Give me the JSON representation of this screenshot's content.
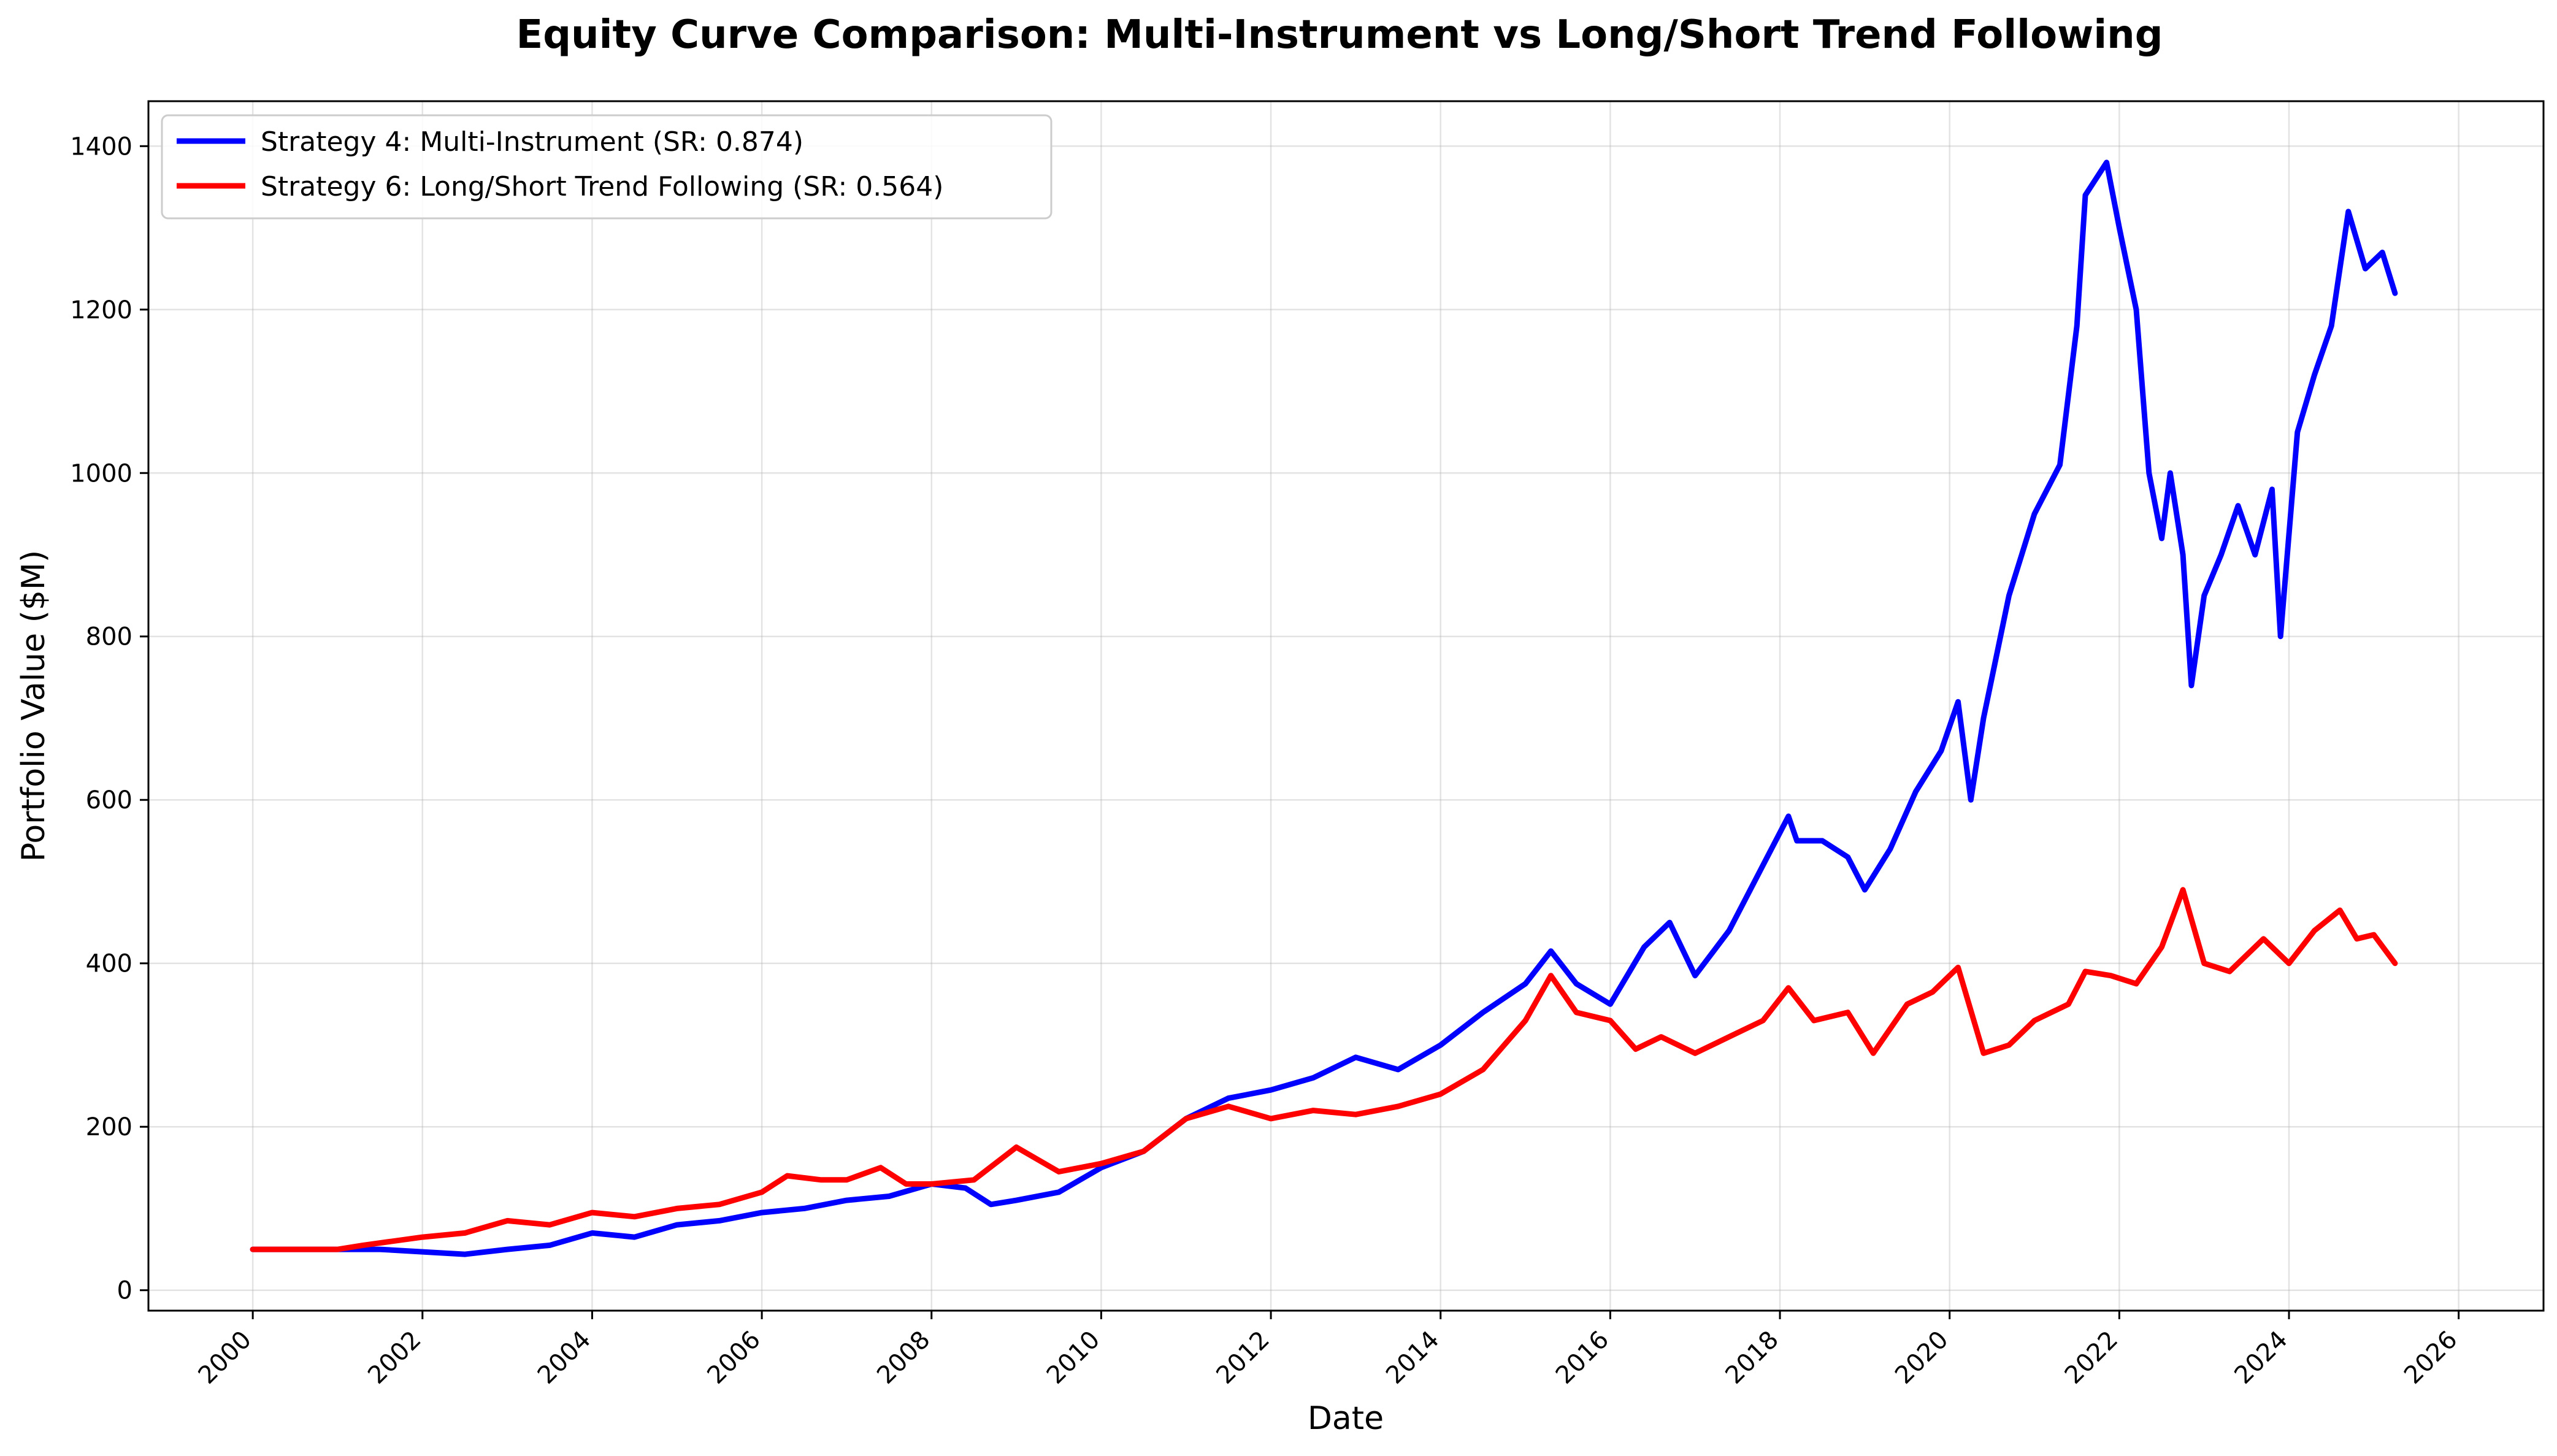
{
  "chart_data": {
    "type": "line",
    "title": "Equity Curve Comparison: Multi-Instrument vs Long/Short Trend Following",
    "xlabel": "Date",
    "ylabel": "Portfolio Value ($M)",
    "xlim": [
      1998.77,
      2027.0
    ],
    "ylim": [
      -25,
      1455
    ],
    "grid": true,
    "legend_position": "top-left",
    "x_ticks": [
      "2000",
      "2002",
      "2004",
      "2006",
      "2008",
      "2010",
      "2012",
      "2014",
      "2016",
      "2018",
      "2020",
      "2022",
      "2024",
      "2026"
    ],
    "y_ticks": [
      "0",
      "200",
      "400",
      "600",
      "800",
      "1000",
      "1200",
      "1400"
    ],
    "series": [
      {
        "name": "Strategy 4: Multi-Instrument (SR: 0.874)",
        "color": "#0000ff",
        "points": [
          [
            2000.0,
            50
          ],
          [
            2001.0,
            50
          ],
          [
            2001.5,
            50
          ],
          [
            2002.0,
            47
          ],
          [
            2002.5,
            44
          ],
          [
            2003.0,
            50
          ],
          [
            2003.5,
            55
          ],
          [
            2004.0,
            70
          ],
          [
            2004.5,
            65
          ],
          [
            2005.0,
            80
          ],
          [
            2005.5,
            85
          ],
          [
            2006.0,
            95
          ],
          [
            2006.5,
            100
          ],
          [
            2007.0,
            110
          ],
          [
            2007.5,
            115
          ],
          [
            2008.0,
            130
          ],
          [
            2008.4,
            125
          ],
          [
            2008.7,
            105
          ],
          [
            2009.0,
            110
          ],
          [
            2009.5,
            120
          ],
          [
            2010.0,
            150
          ],
          [
            2010.5,
            170
          ],
          [
            2011.0,
            210
          ],
          [
            2011.5,
            235
          ],
          [
            2012.0,
            245
          ],
          [
            2012.5,
            260
          ],
          [
            2013.0,
            285
          ],
          [
            2013.5,
            270
          ],
          [
            2014.0,
            300
          ],
          [
            2014.5,
            340
          ],
          [
            2015.0,
            375
          ],
          [
            2015.3,
            415
          ],
          [
            2015.6,
            375
          ],
          [
            2016.0,
            350
          ],
          [
            2016.4,
            420
          ],
          [
            2016.7,
            450
          ],
          [
            2017.0,
            385
          ],
          [
            2017.4,
            440
          ],
          [
            2017.8,
            520
          ],
          [
            2018.1,
            580
          ],
          [
            2018.2,
            550
          ],
          [
            2018.5,
            550
          ],
          [
            2018.8,
            530
          ],
          [
            2019.0,
            490
          ],
          [
            2019.3,
            540
          ],
          [
            2019.6,
            610
          ],
          [
            2019.9,
            660
          ],
          [
            2020.1,
            720
          ],
          [
            2020.25,
            600
          ],
          [
            2020.4,
            700
          ],
          [
            2020.7,
            850
          ],
          [
            2021.0,
            950
          ],
          [
            2021.3,
            1010
          ],
          [
            2021.5,
            1180
          ],
          [
            2021.6,
            1340
          ],
          [
            2021.85,
            1380
          ],
          [
            2022.0,
            1300
          ],
          [
            2022.2,
            1200
          ],
          [
            2022.35,
            1000
          ],
          [
            2022.5,
            920
          ],
          [
            2022.6,
            1000
          ],
          [
            2022.75,
            900
          ],
          [
            2022.85,
            740
          ],
          [
            2023.0,
            850
          ],
          [
            2023.2,
            900
          ],
          [
            2023.4,
            960
          ],
          [
            2023.6,
            900
          ],
          [
            2023.8,
            980
          ],
          [
            2023.9,
            800
          ],
          [
            2024.1,
            1050
          ],
          [
            2024.3,
            1120
          ],
          [
            2024.5,
            1180
          ],
          [
            2024.7,
            1320
          ],
          [
            2024.9,
            1250
          ],
          [
            2025.1,
            1270
          ],
          [
            2025.25,
            1220
          ]
        ]
      },
      {
        "name": "Strategy 6: Long/Short Trend Following (SR: 0.564)",
        "color": "#ff0000",
        "points": [
          [
            2000.0,
            50
          ],
          [
            2001.0,
            50
          ],
          [
            2001.3,
            55
          ],
          [
            2002.0,
            65
          ],
          [
            2002.5,
            70
          ],
          [
            2003.0,
            85
          ],
          [
            2003.5,
            80
          ],
          [
            2004.0,
            95
          ],
          [
            2004.5,
            90
          ],
          [
            2005.0,
            100
          ],
          [
            2005.5,
            105
          ],
          [
            2006.0,
            120
          ],
          [
            2006.3,
            140
          ],
          [
            2006.7,
            135
          ],
          [
            2007.0,
            135
          ],
          [
            2007.4,
            150
          ],
          [
            2007.7,
            130
          ],
          [
            2008.0,
            130
          ],
          [
            2008.5,
            135
          ],
          [
            2009.0,
            175
          ],
          [
            2009.5,
            145
          ],
          [
            2010.0,
            155
          ],
          [
            2010.5,
            170
          ],
          [
            2011.0,
            210
          ],
          [
            2011.5,
            225
          ],
          [
            2012.0,
            210
          ],
          [
            2012.5,
            220
          ],
          [
            2013.0,
            215
          ],
          [
            2013.5,
            225
          ],
          [
            2014.0,
            240
          ],
          [
            2014.5,
            270
          ],
          [
            2015.0,
            330
          ],
          [
            2015.3,
            385
          ],
          [
            2015.6,
            340
          ],
          [
            2016.0,
            330
          ],
          [
            2016.3,
            295
          ],
          [
            2016.6,
            310
          ],
          [
            2017.0,
            290
          ],
          [
            2017.4,
            310
          ],
          [
            2017.8,
            330
          ],
          [
            2018.1,
            370
          ],
          [
            2018.4,
            330
          ],
          [
            2018.8,
            340
          ],
          [
            2019.1,
            290
          ],
          [
            2019.5,
            350
          ],
          [
            2019.8,
            365
          ],
          [
            2020.1,
            395
          ],
          [
            2020.4,
            290
          ],
          [
            2020.7,
            300
          ],
          [
            2021.0,
            330
          ],
          [
            2021.4,
            350
          ],
          [
            2021.6,
            390
          ],
          [
            2021.9,
            385
          ],
          [
            2022.2,
            375
          ],
          [
            2022.5,
            420
          ],
          [
            2022.75,
            490
          ],
          [
            2023.0,
            400
          ],
          [
            2023.3,
            390
          ],
          [
            2023.7,
            430
          ],
          [
            2024.0,
            400
          ],
          [
            2024.3,
            440
          ],
          [
            2024.6,
            465
          ],
          [
            2024.8,
            430
          ],
          [
            2025.0,
            435
          ],
          [
            2025.25,
            400
          ]
        ]
      }
    ]
  }
}
